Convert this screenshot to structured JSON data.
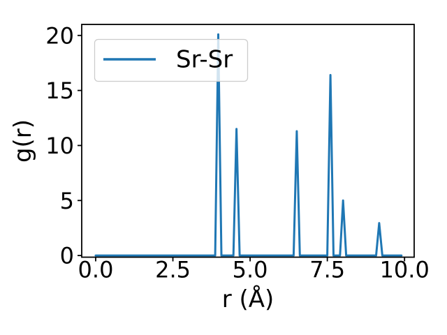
{
  "figure": {
    "background": "#ffffff",
    "axis_color": "#000000",
    "plot_bg": "#ffffff"
  },
  "legend": {
    "entry_label": "Sr-Sr",
    "box_fill": "#ffffff",
    "box_alpha": 0.8,
    "edge_color": "#cccccc"
  },
  "chart_data": {
    "type": "line",
    "title": "",
    "xlabel": "r (Å)",
    "ylabel": "g(r)",
    "legend_entries": [
      "Sr-Sr"
    ],
    "legend_position": "upper left",
    "line_color": "#1f77b4",
    "grid": false,
    "xlim": [
      -0.452,
      10.312
    ],
    "ylim": [
      -0.15,
      21.0
    ],
    "xticks": [
      0.0,
      2.5,
      5.0,
      7.5,
      10.0
    ],
    "xtick_labels": [
      "0.0",
      "2.5",
      "5.0",
      "7.5",
      "10.0"
    ],
    "yticks": [
      0,
      5,
      10,
      15,
      20
    ],
    "ytick_labels": [
      "0",
      "5",
      "10",
      "15",
      "20"
    ],
    "series": [
      {
        "name": "Sr-Sr",
        "color": "#1f77b4",
        "x_start": 0.0,
        "x_end": 9.9,
        "baseline": 0.0,
        "peak_half_width": 0.1,
        "peaks": [
          {
            "r": 3.97,
            "g": 20.1
          },
          {
            "r": 4.56,
            "g": 11.5
          },
          {
            "r": 6.51,
            "g": 11.3
          },
          {
            "r": 7.6,
            "g": 16.4
          },
          {
            "r": 8.01,
            "g": 5.0
          },
          {
            "r": 9.18,
            "g": 2.95
          }
        ]
      }
    ]
  }
}
